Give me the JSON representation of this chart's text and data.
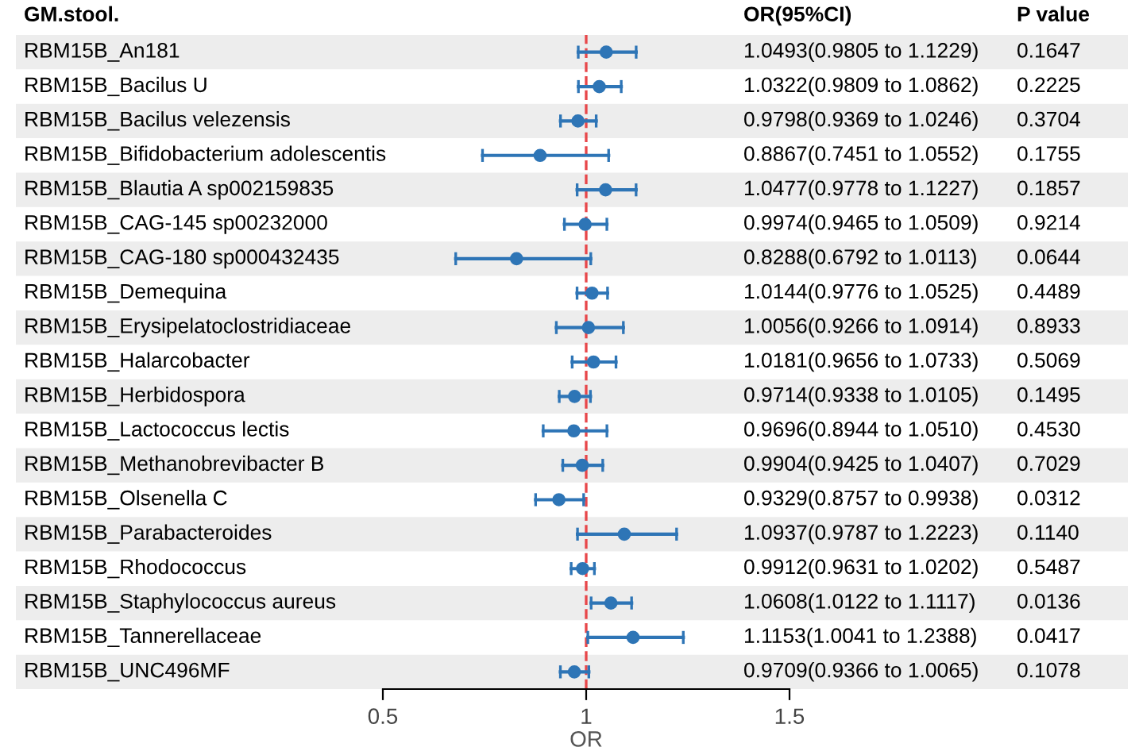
{
  "chart_data": {
    "type": "scatter",
    "orientation": "horizontal",
    "ylabel": "GM.stool.",
    "xlabel": "OR",
    "categories": [
      "RBM15B_An181",
      "RBM15B_Bacilus U",
      "RBM15B_Bacilus velezensis",
      "RBM15B_Bifidobacterium adolescentis",
      "RBM15B_Blautia A sp002159835",
      "RBM15B_CAG-145 sp00232000",
      "RBM15B_CAG-180 sp000432435",
      "RBM15B_Demequina",
      "RBM15B_Erysipelatoclostridiaceae",
      "RBM15B_Halarcobacter",
      "RBM15B_Herbidospora",
      "RBM15B_Lactococcus lectis",
      "RBM15B_Methanobrevibacter B",
      "RBM15B_Olsenella C",
      "RBM15B_Parabacteroides",
      "RBM15B_Rhodococcus",
      "RBM15B_Staphylococcus aureus",
      "RBM15B_Tannerellaceae",
      "RBM15B_UNC496MF"
    ],
    "series": [
      {
        "color": "#2e75b6",
        "values": [
          1.0493,
          1.0322,
          0.9798,
          0.8867,
          1.0477,
          0.9974,
          0.8288,
          1.0144,
          1.0056,
          1.0181,
          0.9714,
          0.9696,
          0.9904,
          0.9329,
          1.0937,
          0.9912,
          1.0608,
          1.1153,
          0.9709
        ],
        "errors": [
          [
            0.9805,
            1.1229
          ],
          [
            0.9809,
            1.0862
          ],
          [
            0.9369,
            1.0246
          ],
          [
            0.7451,
            1.0552
          ],
          [
            0.9778,
            1.1227
          ],
          [
            0.9465,
            1.0509
          ],
          [
            0.6792,
            1.0113
          ],
          [
            0.9776,
            1.0525
          ],
          [
            0.9266,
            1.0914
          ],
          [
            0.9656,
            1.0733
          ],
          [
            0.9338,
            1.0105
          ],
          [
            0.8944,
            1.051
          ],
          [
            0.9425,
            1.0407
          ],
          [
            0.8757,
            0.9938
          ],
          [
            0.9787,
            1.2223
          ],
          [
            0.9631,
            1.0202
          ],
          [
            1.0122,
            1.1117
          ],
          [
            1.0041,
            1.2388
          ],
          [
            0.9366,
            1.0065
          ]
        ],
        "value_labels": [
          "1.0493(0.9805 to 1.1229)",
          "1.0322(0.9809 to 1.0862)",
          "0.9798(0.9369 to 1.0246)",
          "0.8867(0.7451 to 1.0552)",
          "1.0477(0.9778 to 1.1227)",
          "0.9974(0.9465 to 1.0509)",
          "0.8288(0.6792 to 1.0113)",
          "1.0144(0.9776 to 1.0525)",
          "1.0056(0.9266 to 1.0914)",
          "1.0181(0.9656 to 1.0733)",
          "0.9714(0.9338 to 1.0105)",
          "0.9696(0.8944 to 1.0510)",
          "0.9904(0.9425 to 1.0407)",
          "0.9329(0.8757 to 0.9938)",
          "1.0937(0.9787 to 1.2223)",
          "0.9912(0.9631 to 1.0202)",
          "1.0608(1.0122 to 1.1117)",
          "1.1153(1.0041 to 1.2388)",
          "0.9709(0.9366 to 1.0065)"
        ]
      }
    ],
    "marker": "circle",
    "xlim": [
      0.5,
      1.5
    ],
    "xticks": [
      0.5,
      1,
      1.5
    ],
    "grid": false,
    "ref_lines": [
      {
        "axis": "x",
        "value": 1,
        "color": "#e8474a",
        "line_style": "dashed"
      }
    ],
    "bands": [
      {
        "axis": "y",
        "from": "RBM15B_An181",
        "to": "RBM15B_An181",
        "color": "#ededed"
      },
      {
        "axis": "y",
        "from": "RBM15B_Bacilus velezensis",
        "to": "RBM15B_Bacilus velezensis",
        "color": "#ededed"
      },
      {
        "axis": "y",
        "from": "RBM15B_Blautia A sp002159835",
        "to": "RBM15B_Blautia A sp002159835",
        "color": "#ededed"
      },
      {
        "axis": "y",
        "from": "RBM15B_CAG-180 sp000432435",
        "to": "RBM15B_CAG-180 sp000432435",
        "color": "#ededed"
      },
      {
        "axis": "y",
        "from": "RBM15B_Erysipelatoclostridiaceae",
        "to": "RBM15B_Erysipelatoclostridiaceae",
        "color": "#ededed"
      },
      {
        "axis": "y",
        "from": "RBM15B_Herbidospora",
        "to": "RBM15B_Herbidospora",
        "color": "#ededed"
      },
      {
        "axis": "y",
        "from": "RBM15B_Methanobrevibacter B",
        "to": "RBM15B_Methanobrevibacter B",
        "color": "#ededed"
      },
      {
        "axis": "y",
        "from": "RBM15B_Parabacteroides",
        "to": "RBM15B_Parabacteroides",
        "color": "#ededed"
      },
      {
        "axis": "y",
        "from": "RBM15B_Staphylococcus aureus",
        "to": "RBM15B_Staphylococcus aureus",
        "color": "#ededed"
      },
      {
        "axis": "y",
        "from": "RBM15B_UNC496MF",
        "to": "RBM15B_UNC496MF",
        "color": "#ededed"
      }
    ],
    "annotations": [
      "OR(95%CI)",
      "P value",
      "0.1647",
      "0.2225",
      "0.3704",
      "0.1755",
      "0.1857",
      "0.9214",
      "0.0644",
      "0.4489",
      "0.8933",
      "0.5069",
      "0.1495",
      "0.4530",
      "0.7029",
      "0.0312",
      "0.1140",
      "0.5487",
      "0.0136",
      "0.0417",
      "0.1078"
    ]
  }
}
